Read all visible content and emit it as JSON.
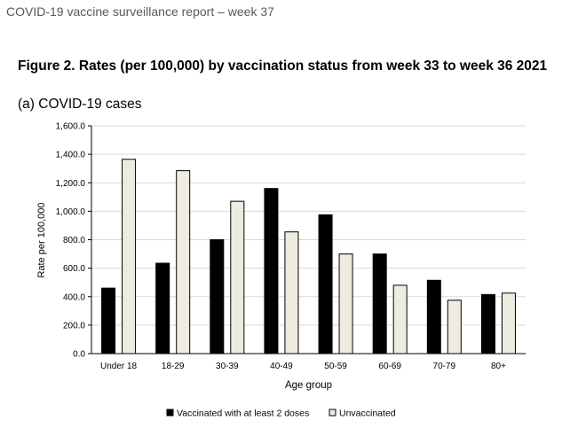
{
  "report_header": "COVID-19 vaccine surveillance report – week 37",
  "figure_title": "Figure 2. Rates (per 100,000) by vaccination status from week 33 to week 36 2021",
  "panel_title": "(a) COVID-19 cases",
  "chart_data": {
    "type": "bar",
    "title": "(a) COVID-19 cases",
    "xlabel": "Age group",
    "ylabel": "Rate per 100,000",
    "ylim": [
      0,
      1600
    ],
    "yticks": [
      "0.0",
      "200.0",
      "400.0",
      "600.0",
      "800.0",
      "1,000.0",
      "1,200.0",
      "1,400.0",
      "1,600.0"
    ],
    "ytick_values": [
      0,
      200,
      400,
      600,
      800,
      1000,
      1200,
      1400,
      1600
    ],
    "grid": true,
    "legend_position": "bottom",
    "categories": [
      "Under 18",
      "18-29",
      "30-39",
      "40-49",
      "50-59",
      "60-69",
      "70-79",
      "80+"
    ],
    "series": [
      {
        "name": "Vaccinated with at least 2 doses",
        "color": "#000000",
        "values": [
          460,
          635,
          800,
          1160,
          975,
          700,
          515,
          415
        ]
      },
      {
        "name": "Unvaccinated",
        "color": "#eeece1",
        "values": [
          1365,
          1285,
          1070,
          855,
          700,
          480,
          375,
          425
        ]
      }
    ]
  }
}
